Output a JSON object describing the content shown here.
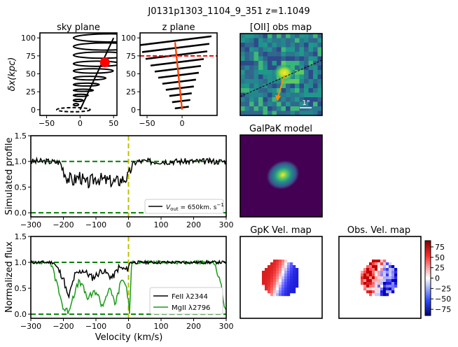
{
  "figure_title": "J0131p1303_1104_9_351 z=1.1049",
  "colors": {
    "black": "#000000",
    "red": "#ff0000",
    "orange_red": "#ff4500",
    "green_dashed": "#008000",
    "mgii_green": "#1a9c1a",
    "yellow_line": "#bfbf00",
    "viridis_dark": "#440154",
    "obs_map_bg": "#31688e",
    "arrow_orange": "#ff8c00"
  },
  "chart_data": [
    {
      "id": "sky_plane",
      "type": "line",
      "title": "sky plane",
      "xlabel": "",
      "ylabel": "δx(kpc)",
      "xlim": [
        -60,
        55
      ],
      "ylim": [
        -8,
        107
      ],
      "xticks": [
        "−50",
        "0",
        "50"
      ],
      "yticks": [
        "0",
        "25",
        "50",
        "75",
        "100"
      ],
      "cone": {
        "apex_y": 0,
        "top_y": 100,
        "axis_x_at_top": 50,
        "half_width_per_kpc": 0.55
      },
      "ellipse_levels_y": [
        100,
        88,
        76,
        64,
        54,
        44,
        35,
        27,
        20,
        13,
        7
      ],
      "galaxy_ellipse": {
        "cx": -10,
        "cy": 0,
        "rx": 25,
        "ry": 3,
        "style": "dashed"
      },
      "red_marker": {
        "x": 37,
        "y": 66
      }
    },
    {
      "id": "z_plane",
      "type": "line",
      "title": "z plane",
      "xlim": [
        -60,
        50
      ],
      "ylim": [
        -8,
        107
      ],
      "xticks": [
        "−50",
        "0"
      ],
      "yticks": [
        "0",
        "25",
        "50",
        "75",
        "100"
      ],
      "red_dashed_y": 75,
      "axis_line": {
        "x_top": -10,
        "y_top": 94,
        "x_bottom": 0,
        "y_bottom": 0
      },
      "segments": [
        {
          "y": 96,
          "half": 52
        },
        {
          "y": 86,
          "half": 48
        },
        {
          "y": 76,
          "half": 44
        },
        {
          "y": 66,
          "half": 38
        },
        {
          "y": 57,
          "half": 33
        },
        {
          "y": 48,
          "half": 29
        },
        {
          "y": 39,
          "half": 24
        },
        {
          "y": 30,
          "half": 20
        },
        {
          "y": 21,
          "half": 16
        },
        {
          "y": 12,
          "half": 13
        },
        {
          "y": 3,
          "half": 10
        }
      ]
    },
    {
      "id": "oii_map",
      "type": "heatmap",
      "title": "[OII] obs map",
      "scale_label": "1\""
    },
    {
      "id": "galpak_model",
      "type": "heatmap",
      "title": "GalPaK model"
    },
    {
      "id": "simulated_profile",
      "type": "line",
      "xlabel": "",
      "ylabel": "Simulated profile",
      "xlim": [
        -300,
        300
      ],
      "ylim": [
        -0.08,
        1.5
      ],
      "xticks": [
        "−300",
        "−200",
        "−100",
        "0",
        "100",
        "200",
        "300"
      ],
      "yticks": [
        "0.0",
        "0.5",
        "1.0",
        "1.5"
      ],
      "hlines": [
        1.0,
        0.0
      ],
      "vline": 0,
      "legend": "V_out = 650km.s^-1",
      "series": [
        {
          "name": "V_out = 650km.s^-1",
          "x": [
            -300,
            -250,
            -210,
            -190,
            -170,
            -150,
            -130,
            -100,
            -70,
            -40,
            -15,
            0,
            10,
            25,
            60,
            150,
            300
          ],
          "y": [
            1.0,
            1.0,
            0.98,
            0.7,
            0.62,
            0.72,
            0.55,
            0.68,
            0.63,
            0.6,
            0.66,
            0.7,
            0.92,
            1.0,
            1.0,
            1.0,
            1.0
          ]
        }
      ]
    },
    {
      "id": "normalized_flux",
      "type": "line",
      "xlabel": "Velocity (km/s)",
      "ylabel": "Normalized flux",
      "xlim": [
        -300,
        300
      ],
      "ylim": [
        -0.08,
        1.5
      ],
      "xticks": [
        "−300",
        "−200",
        "−100",
        "0",
        "100",
        "200",
        "300"
      ],
      "yticks": [
        "0.0",
        "0.5",
        "1.0",
        "1.5"
      ],
      "hlines": [
        1.0,
        0.0
      ],
      "vline": 0,
      "series": [
        {
          "name": "FeII λ2344",
          "x": [
            -300,
            -230,
            -200,
            -185,
            -165,
            -140,
            -110,
            -80,
            -50,
            -30,
            -5,
            5,
            25,
            300
          ],
          "y": [
            1.0,
            1.0,
            0.7,
            0.3,
            0.75,
            0.85,
            0.7,
            0.85,
            0.7,
            0.9,
            0.85,
            1.0,
            1.0,
            1.0
          ]
        },
        {
          "name": "MgII λ2796",
          "x": [
            -300,
            -240,
            -215,
            -200,
            -185,
            -170,
            -150,
            -125,
            -100,
            -80,
            -60,
            -40,
            -20,
            -5,
            3,
            10,
            40,
            260,
            285,
            295,
            300
          ],
          "y": [
            1.0,
            1.0,
            0.5,
            0.1,
            0.05,
            0.35,
            0.65,
            0.3,
            0.45,
            0.15,
            0.5,
            0.2,
            0.7,
            0.5,
            0.05,
            1.0,
            1.0,
            1.0,
            0.6,
            0.1,
            0.05
          ]
        }
      ]
    },
    {
      "id": "gpk_vel_map",
      "type": "heatmap",
      "title": "GpK Vel. map"
    },
    {
      "id": "obs_vel_map",
      "type": "heatmap",
      "title": "Obs. Vel. map",
      "colorbar_ticks": [
        "75",
        "50",
        "25",
        "0",
        "−25",
        "−50",
        "−75"
      ],
      "colorbar_range": [
        -90,
        90
      ]
    }
  ]
}
